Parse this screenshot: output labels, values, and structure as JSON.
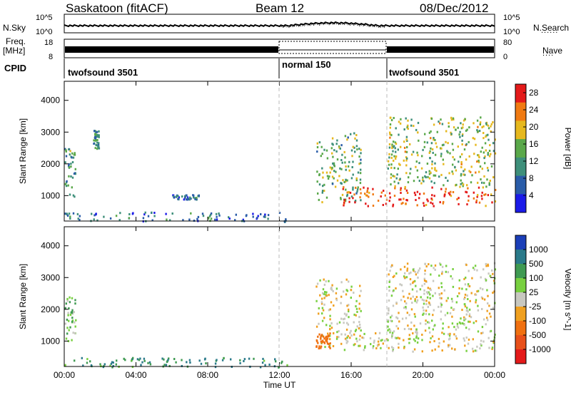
{
  "header": {
    "station": "Saskatoon (fitACF)",
    "beam": "Beam 12",
    "date": "08/Dec/2012"
  },
  "nsky_panel": {
    "left_label": "N.Sky",
    "right_label": "N.Search",
    "right_label_sample": "......",
    "left_ticks": [
      "10^5",
      "10^0"
    ],
    "right_ticks": [
      "10^5",
      "10^0"
    ]
  },
  "freq_panel": {
    "left_label_top": "Freq.",
    "left_label_units": "[MHz]",
    "left_ticks": [
      "18",
      "8"
    ],
    "right_label": "Nave",
    "right_label_sample": "....",
    "right_ticks": [
      "80",
      "0"
    ]
  },
  "cpid_panel": {
    "label": "CPID",
    "segments": [
      {
        "name": "twofsound 3501",
        "start_hour": 0,
        "end_hour": 12
      },
      {
        "name": "normal 150",
        "start_hour": 12,
        "end_hour": 18
      },
      {
        "name": "twofsound 3501",
        "start_hour": 18,
        "end_hour": 24
      }
    ]
  },
  "chart_data": [
    {
      "type": "heatmap",
      "name": "Power",
      "ylabel": "Slant Range [km]",
      "yticks": [
        "1000",
        "2000",
        "3000",
        "4000"
      ],
      "ylim": [
        200,
        4600
      ],
      "xlim": [
        0,
        24
      ],
      "colorbar_label": "Power [dB]",
      "colorbar_ticks": [
        "4",
        "8",
        "12",
        "16",
        "20",
        "24",
        "28"
      ],
      "colorbar_range": [
        0,
        30
      ],
      "colors": [
        "#1b1be8",
        "#2a5ca8",
        "#3e8f7a",
        "#5aa84a",
        "#e6b81e",
        "#f07a12",
        "#e41a1a"
      ],
      "echo_regions": [
        {
          "t_start": 0.0,
          "t_end": 0.6,
          "range_min": 1000,
          "range_max": 2500,
          "power_db": 12
        },
        {
          "t_start": 1.6,
          "t_end": 1.9,
          "range_min": 2500,
          "range_max": 3100,
          "power_db": 10
        },
        {
          "t_start": 6.0,
          "t_end": 7.5,
          "range_min": 900,
          "range_max": 1050,
          "power_db": 8
        },
        {
          "t_start": 0.0,
          "t_end": 12.5,
          "range_min": 200,
          "range_max": 500,
          "power_db": 8
        },
        {
          "t_start": 14.0,
          "t_end": 16.5,
          "range_min": 800,
          "range_max": 3000,
          "power_db": 14
        },
        {
          "t_start": 15.5,
          "t_end": 24.0,
          "range_min": 700,
          "range_max": 1300,
          "power_db": 26
        },
        {
          "t_start": 18.0,
          "t_end": 24.0,
          "range_min": 1300,
          "range_max": 3500,
          "power_db": 16
        }
      ]
    },
    {
      "type": "heatmap",
      "name": "Velocity",
      "ylabel": "Slant Range [km]",
      "yticks": [
        "1000",
        "2000",
        "3000",
        "4000"
      ],
      "ylim": [
        200,
        4600
      ],
      "xlim": [
        0,
        24
      ],
      "xlabel": "Time UT",
      "xticks": [
        "00:00",
        "04:00",
        "08:00",
        "12:00",
        "16:00",
        "20:00",
        "00:00"
      ],
      "colorbar_label": "Velocity [m s^-1]",
      "colorbar_ticks": [
        "1000",
        "500",
        "100",
        "25",
        "-25",
        "-100",
        "-500",
        "-1000"
      ],
      "colors": [
        "#1b3fb8",
        "#2a7a8a",
        "#3f9a52",
        "#78d040",
        "#c8c8c0",
        "#f0a020",
        "#f07010",
        "#e8501a",
        "#e41a1a"
      ],
      "echo_regions": [
        {
          "t_start": 0.0,
          "t_end": 0.6,
          "range_min": 1000,
          "range_max": 2500,
          "velocity": 50
        },
        {
          "t_start": 0.0,
          "t_end": 12.5,
          "range_min": 200,
          "range_max": 500,
          "velocity": 100
        },
        {
          "t_start": 14.0,
          "t_end": 16.5,
          "range_min": 800,
          "range_max": 3000,
          "velocity": 0
        },
        {
          "t_start": 14.0,
          "t_end": 14.8,
          "range_min": 800,
          "range_max": 1300,
          "velocity": -200
        },
        {
          "t_start": 15.5,
          "t_end": 24.0,
          "range_min": 700,
          "range_max": 1300,
          "velocity": 0
        },
        {
          "t_start": 18.0,
          "t_end": 24.0,
          "range_min": 1300,
          "range_max": 3500,
          "velocity": 0
        }
      ]
    }
  ]
}
